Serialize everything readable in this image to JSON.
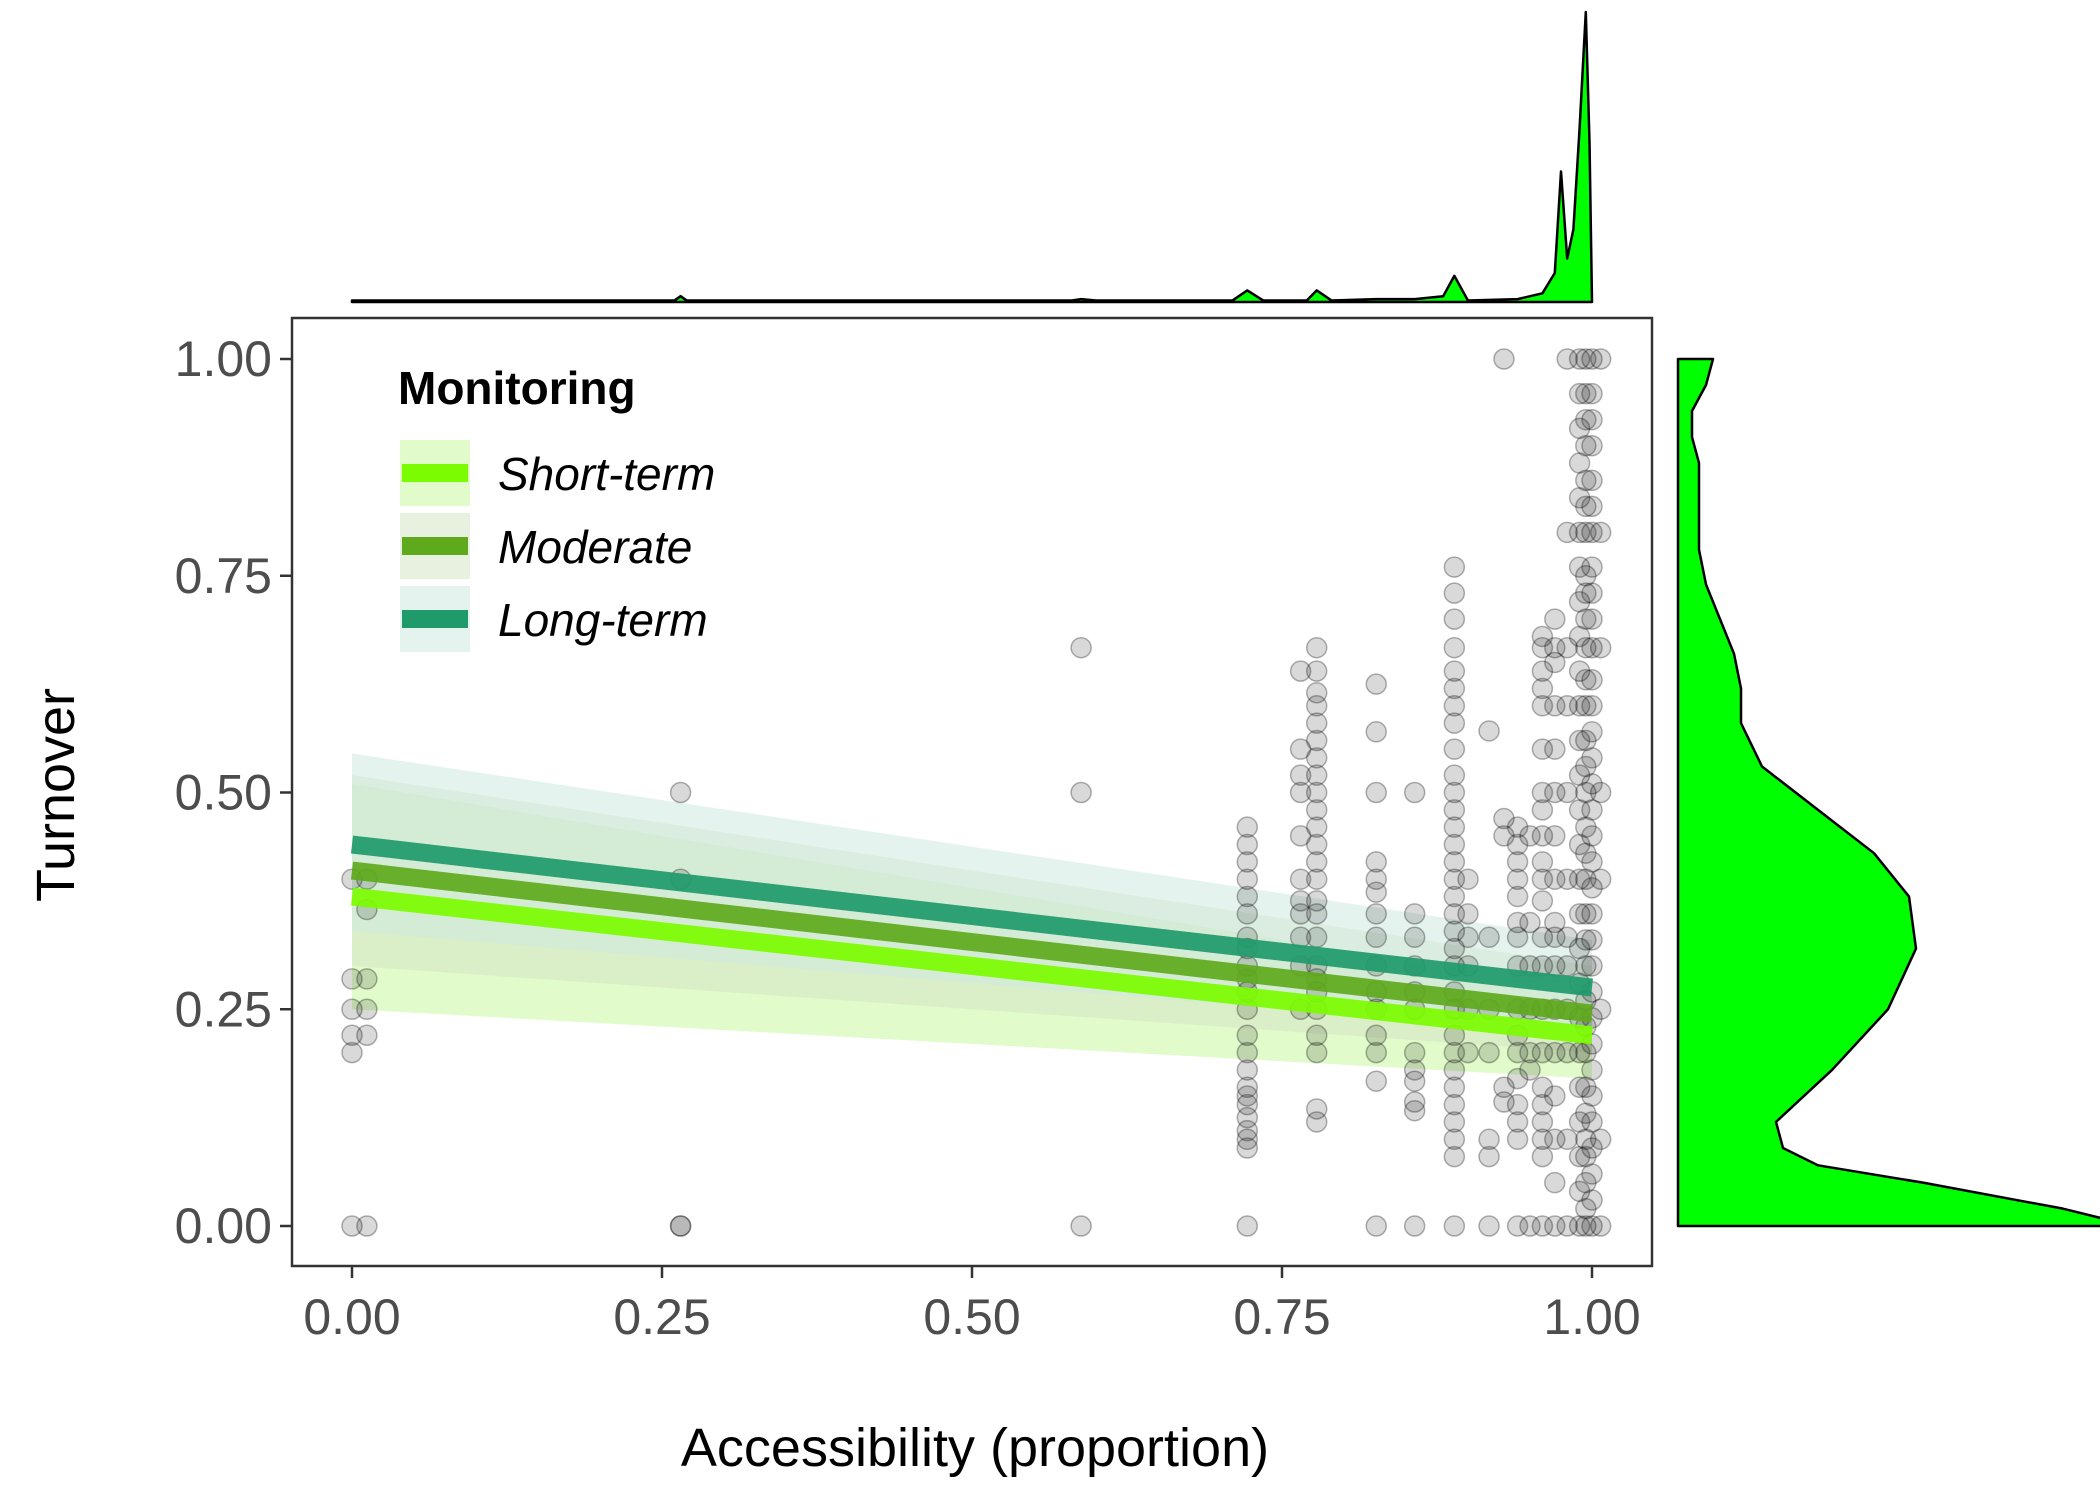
{
  "chart_data": {
    "type": "scatter",
    "xlabel": "Accessibility (proportion)",
    "ylabel": "Turnover",
    "xlim": [
      -0.05,
      1.05
    ],
    "ylim": [
      -0.05,
      1.05
    ],
    "x_ticks": [
      0,
      0.25,
      0.5,
      0.75,
      1
    ],
    "y_ticks": [
      0,
      0.25,
      0.5,
      0.75,
      1
    ],
    "x_tick_labels": [
      "0.00",
      "0.25",
      "0.50",
      "0.75",
      "1.00"
    ],
    "y_tick_labels": [
      "0.00",
      "0.25",
      "0.50",
      "0.75",
      "1.00"
    ],
    "grid": false,
    "legend": {
      "title": "Monitoring",
      "placement": "top-left",
      "entries": [
        "Short-term",
        "Moderate",
        "Long-term"
      ]
    },
    "points": {
      "color": "#000000",
      "columns": [
        {
          "x": 0.0,
          "y": [
            0,
            0.2,
            0.22,
            0.25,
            0.285,
            0.4
          ]
        },
        {
          "x": 0.012,
          "y": [
            0,
            0.22,
            0.25,
            0.285,
            0.365,
            0.4
          ]
        },
        {
          "x": 0.265,
          "y": [
            0,
            0,
            0.4,
            0.5
          ]
        },
        {
          "x": 0.588,
          "y": [
            0,
            0.5,
            0.667
          ]
        },
        {
          "x": 0.722,
          "y": [
            0,
            0.09,
            0.1,
            0.11,
            0.125,
            0.14,
            0.15,
            0.16,
            0.18,
            0.2,
            0.22,
            0.25,
            0.27,
            0.285,
            0.3,
            0.32,
            0.333,
            0.36,
            0.38,
            0.4,
            0.42,
            0.44,
            0.46
          ]
        },
        {
          "x": 0.765,
          "y": [
            0.25,
            0.3,
            0.333,
            0.36,
            0.375,
            0.4,
            0.45,
            0.5,
            0.52,
            0.55,
            0.64
          ]
        },
        {
          "x": 0.778,
          "y": [
            0.12,
            0.135,
            0.2,
            0.22,
            0.25,
            0.27,
            0.285,
            0.3,
            0.333,
            0.36,
            0.375,
            0.4,
            0.42,
            0.44,
            0.46,
            0.48,
            0.5,
            0.52,
            0.54,
            0.56,
            0.58,
            0.6,
            0.615,
            0.64,
            0.667
          ]
        },
        {
          "x": 0.826,
          "y": [
            0,
            0.167,
            0.2,
            0.22,
            0.25,
            0.27,
            0.3,
            0.333,
            0.36,
            0.385,
            0.4,
            0.42,
            0.5,
            0.57,
            0.625
          ]
        },
        {
          "x": 0.857,
          "y": [
            0,
            0.133,
            0.143,
            0.167,
            0.18,
            0.2,
            0.25,
            0.27,
            0.3,
            0.333,
            0.36,
            0.5
          ]
        },
        {
          "x": 0.889,
          "y": [
            0,
            0.08,
            0.1,
            0.12,
            0.14,
            0.16,
            0.18,
            0.2,
            0.22,
            0.25,
            0.27,
            0.3,
            0.32,
            0.34,
            0.36,
            0.38,
            0.4,
            0.42,
            0.44,
            0.46,
            0.48,
            0.5,
            0.52,
            0.55,
            0.58,
            0.6,
            0.62,
            0.64,
            0.667,
            0.7,
            0.73,
            0.76
          ]
        },
        {
          "x": 0.9,
          "y": [
            0.2,
            0.25,
            0.3,
            0.333,
            0.36,
            0.4
          ]
        },
        {
          "x": 0.917,
          "y": [
            0,
            0.08,
            0.1,
            0.2,
            0.25,
            0.333,
            0.571
          ]
        },
        {
          "x": 0.929,
          "y": [
            0.143,
            0.16,
            0.45,
            0.47,
            1.0
          ]
        },
        {
          "x": 0.94,
          "y": [
            0,
            0.1,
            0.12,
            0.14,
            0.17,
            0.2,
            0.22,
            0.25,
            0.3,
            0.333,
            0.35,
            0.38,
            0.4,
            0.42,
            0.44,
            0.46
          ]
        },
        {
          "x": 0.95,
          "y": [
            0,
            0.18,
            0.2,
            0.25,
            0.3,
            0.35,
            0.45
          ]
        },
        {
          "x": 0.96,
          "y": [
            0,
            0.08,
            0.1,
            0.12,
            0.14,
            0.16,
            0.2,
            0.25,
            0.3,
            0.333,
            0.375,
            0.4,
            0.42,
            0.45,
            0.48,
            0.5,
            0.55,
            0.6,
            0.62,
            0.64,
            0.667,
            0.68
          ]
        },
        {
          "x": 0.97,
          "y": [
            0,
            0.05,
            0.1,
            0.15,
            0.2,
            0.25,
            0.3,
            0.333,
            0.35,
            0.4,
            0.45,
            0.5,
            0.55,
            0.6,
            0.65,
            0.667,
            0.7
          ]
        },
        {
          "x": 0.98,
          "y": [
            0,
            0.1,
            0.2,
            0.25,
            0.3,
            0.333,
            0.4,
            0.5,
            0.6,
            0.667,
            0.8,
            1.0
          ]
        },
        {
          "x": 0.99,
          "y": [
            0,
            0.04,
            0.08,
            0.12,
            0.16,
            0.2,
            0.24,
            0.28,
            0.32,
            0.36,
            0.4,
            0.44,
            0.48,
            0.52,
            0.56,
            0.6,
            0.64,
            0.68,
            0.72,
            0.76,
            0.8,
            0.84,
            0.88,
            0.92,
            0.96,
            1.0
          ]
        },
        {
          "x": 0.995,
          "y": [
            0,
            0.02,
            0.05,
            0.08,
            0.1,
            0.13,
            0.16,
            0.2,
            0.23,
            0.26,
            0.3,
            0.33,
            0.36,
            0.4,
            0.43,
            0.46,
            0.5,
            0.53,
            0.56,
            0.6,
            0.63,
            0.667,
            0.7,
            0.73,
            0.75,
            0.8,
            0.83,
            0.86,
            0.9,
            0.93,
            0.96,
            1.0
          ]
        },
        {
          "x": 1.0,
          "y": [
            0,
            0.03,
            0.06,
            0.09,
            0.12,
            0.15,
            0.18,
            0.21,
            0.24,
            0.27,
            0.3,
            0.33,
            0.36,
            0.39,
            0.42,
            0.45,
            0.48,
            0.51,
            0.54,
            0.57,
            0.6,
            0.63,
            0.667,
            0.7,
            0.73,
            0.76,
            0.8,
            0.83,
            0.86,
            0.9,
            0.93,
            0.96,
            1.0
          ]
        },
        {
          "x": 1.007,
          "y": [
            0,
            0.1,
            0.25,
            0.4,
            0.5,
            0.667,
            0.8,
            1.0
          ]
        }
      ]
    },
    "series": [
      {
        "name": "Short-term",
        "color": "#7CFC00",
        "ribbon_color": "#C8F7A0",
        "x": [
          0,
          1
        ],
        "y": [
          0.38,
          0.22
        ],
        "lower": [
          0.25,
          0.17
        ],
        "upper": [
          0.51,
          0.27
        ]
      },
      {
        "name": "Moderate",
        "color": "#5EA91C",
        "ribbon_color": "#D6E6C4",
        "x": [
          0,
          1
        ],
        "y": [
          0.41,
          0.245
        ],
        "lower": [
          0.3,
          0.2
        ],
        "upper": [
          0.52,
          0.3
        ]
      },
      {
        "name": "Long-term",
        "color": "#1E9A6B",
        "ribbon_color": "#CFE9E1",
        "x": [
          0,
          1
        ],
        "y": [
          0.44,
          0.275
        ],
        "lower": [
          0.34,
          0.22
        ],
        "upper": [
          0.545,
          0.33
        ]
      }
    ],
    "marginal_x_density": {
      "fill": "#00FF00",
      "x": [
        0.0,
        0.26,
        0.265,
        0.27,
        0.58,
        0.588,
        0.6,
        0.71,
        0.722,
        0.735,
        0.77,
        0.778,
        0.79,
        0.826,
        0.857,
        0.88,
        0.889,
        0.9,
        0.94,
        0.96,
        0.97,
        0.975,
        0.98,
        0.985,
        0.99,
        0.995,
        0.998,
        1.0
      ],
      "density": [
        0.005,
        0.005,
        0.02,
        0.005,
        0.005,
        0.01,
        0.005,
        0.005,
        0.04,
        0.005,
        0.005,
        0.04,
        0.005,
        0.01,
        0.01,
        0.02,
        0.09,
        0.005,
        0.01,
        0.03,
        0.1,
        0.45,
        0.15,
        0.25,
        0.6,
        1.0,
        0.55,
        0.0
      ]
    },
    "marginal_y_density": {
      "fill": "#00FF00",
      "y": [
        0.0,
        0.02,
        0.05,
        0.07,
        0.09,
        0.12,
        0.18,
        0.25,
        0.32,
        0.38,
        0.43,
        0.48,
        0.53,
        0.58,
        0.62,
        0.66,
        0.7,
        0.74,
        0.78,
        0.84,
        0.88,
        0.91,
        0.94,
        0.97,
        1.0
      ],
      "density": [
        0.65,
        0.55,
        0.35,
        0.2,
        0.15,
        0.14,
        0.22,
        0.3,
        0.34,
        0.33,
        0.28,
        0.2,
        0.12,
        0.09,
        0.09,
        0.08,
        0.06,
        0.04,
        0.03,
        0.03,
        0.03,
        0.02,
        0.02,
        0.04,
        0.05
      ]
    }
  }
}
